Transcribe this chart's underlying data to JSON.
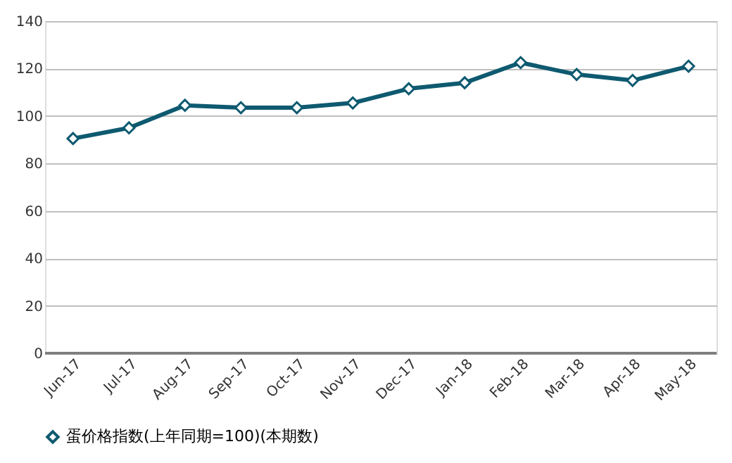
{
  "chart_data": {
    "type": "line",
    "categories": [
      "Jun-17",
      "Jul-17",
      "Aug-17",
      "Sep-17",
      "Oct-17",
      "Nov-17",
      "Dec-17",
      "Jan-18",
      "Feb-18",
      "Mar-18",
      "Apr-18",
      "May-18"
    ],
    "series": [
      {
        "name": "蛋价格指数(上年同期=100)(本期数)",
        "color": "#0e5a70",
        "values": [
          90.5,
          95,
          104.5,
          103.5,
          103.5,
          105.5,
          111.5,
          114,
          122.5,
          117.5,
          115,
          121
        ]
      }
    ],
    "ylim": [
      0,
      140
    ],
    "yticks": [
      0,
      20,
      40,
      60,
      80,
      100,
      120,
      140
    ],
    "grid": "y",
    "legend": "bottom",
    "marker": "diamond",
    "line_style": "solid"
  }
}
